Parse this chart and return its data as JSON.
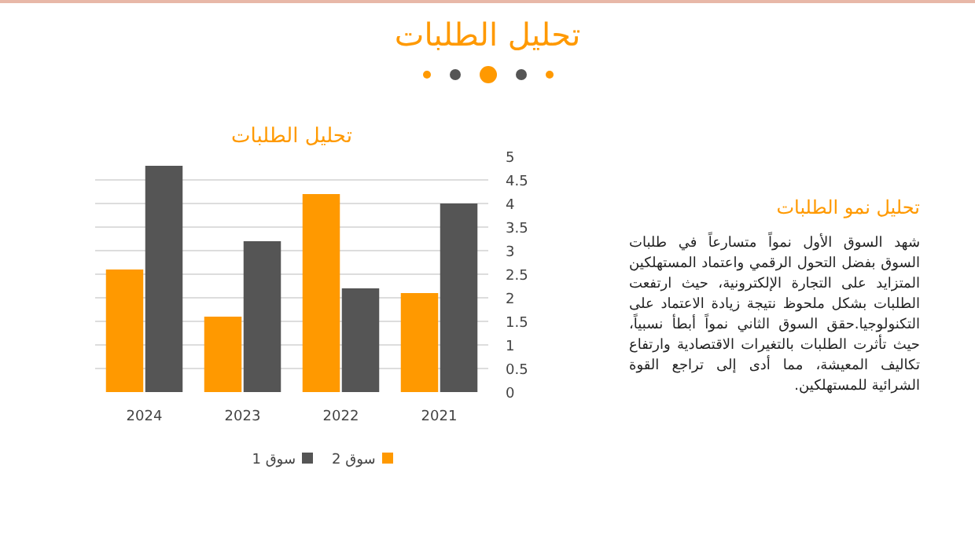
{
  "chart_data": {
    "type": "bar",
    "title": "تحليل الطلبات",
    "categories": [
      "2024",
      "2023",
      "2022",
      "2021"
    ],
    "series": [
      {
        "name": "سوق 2",
        "color": "#ff9900",
        "values": [
          2.6,
          1.6,
          4.2,
          2.1
        ]
      },
      {
        "name": "سوق 1",
        "color": "#555555",
        "values": [
          4.8,
          3.2,
          2.2,
          4.0
        ]
      }
    ],
    "ylim": [
      0,
      5
    ],
    "yticks": [
      0,
      0.5,
      1,
      1.5,
      2,
      2.5,
      3,
      3.5,
      4,
      4.5,
      5
    ],
    "grid": "y",
    "legend": "bottom",
    "annotations": [
      "تحليل الطلبات",
      "تحليل نمو الطلبات",
      "شهد السوق الأول نمواً متسارعاً في طلبات السوق بفضل التحول الرقمي واعتماد المستهلكين المتزايد على التجارة الإلكترونية، حيث ارتفعت الطلبات بشكل ملحوظ نتيجة زيادة الاعتماد على التكنولوجيا.حقق السوق الثاني نمواً أبطأ نسبياً، حيث تأثرت الطلبات بالتغيرات الاقتصادية وارتفاع تكاليف المعيشة، مما أدى إلى تراجع القوة الشرائية للمستهلكين."
    ]
  }
}
